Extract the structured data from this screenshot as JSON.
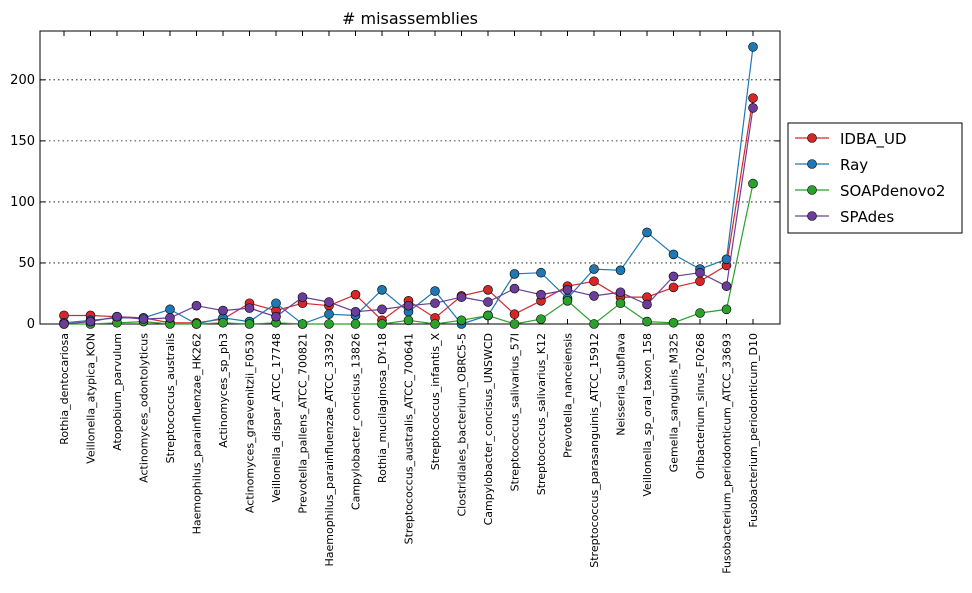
{
  "chart_data": {
    "type": "line",
    "title": "# misassemblies",
    "xlabel": "",
    "ylabel": "",
    "ylim": [
      0,
      240
    ],
    "yticks": [
      0,
      50,
      100,
      150,
      200
    ],
    "grid": "y",
    "legend_position": "right",
    "categories": [
      "Rothia_dentocariosa",
      "Veillonella_atypica_KON",
      "Atopobium_parvulum",
      "Actinomyces_odontolyticus",
      "Streptococcus_australis",
      "Haemophilus_parainfluenzae_HK262",
      "Actinomyces_sp_ph3",
      "Actinomyces_graevenitzii_F0530",
      "Veillonella_dispar_ATCC_17748",
      "Prevotella_pallens_ATCC_700821",
      "Haemophilus_parainfluenzae_ATCC_33392",
      "Campylobacter_concisus_13826",
      "Rothia_mucilaginosa_DY-18",
      "Streptococcus_australis_ATCC_700641",
      "Streptococcus_infantis_X",
      "Clostridiales_bacterium_OBRC5-5",
      "Campylobacter_concisus_UNSWCD",
      "Streptococcus_salivarius_57I",
      "Streptococcus_salivarius_K12",
      "Prevotella_nanceiensis",
      "Streptococcus_parasanguinis_ATCC_15912",
      "Neisseria_subflava",
      "Veillonella_sp_oral_taxon_158",
      "Gemella_sanguinis_M325",
      "Oribacterium_sinus_F0268",
      "Fusobacterium_periodonticum_ATCC_33693",
      "Fusobacterium_periodonticum_D10"
    ],
    "series": [
      {
        "name": "IDBA_UD",
        "color": "#d62728",
        "values": [
          7,
          7,
          6,
          5,
          1,
          1,
          4,
          17,
          11,
          17,
          15,
          24,
          3,
          19,
          5,
          23,
          28,
          8,
          19,
          31,
          35,
          22,
          22,
          30,
          35,
          48,
          185
        ]
      },
      {
        "name": "Ray",
        "color": "#1f77b4",
        "values": [
          1,
          3,
          5,
          5,
          12,
          0,
          5,
          2,
          17,
          0,
          8,
          7,
          28,
          10,
          27,
          0,
          7,
          41,
          42,
          21,
          45,
          44,
          75,
          57,
          45,
          53,
          227
        ]
      },
      {
        "name": "SOAPdenovo2",
        "color": "#2ca02c",
        "values": [
          0,
          0,
          1,
          2,
          0,
          0,
          1,
          0,
          1,
          0,
          0,
          0,
          0,
          3,
          0,
          3,
          7,
          0,
          4,
          19,
          0,
          17,
          2,
          1,
          9,
          12,
          115
        ]
      },
      {
        "name": "SPAdes",
        "color": "#6a3d9a",
        "values": [
          0,
          2,
          6,
          4,
          5,
          15,
          11,
          13,
          6,
          22,
          18,
          10,
          12,
          15,
          17,
          22,
          18,
          29,
          24,
          28,
          23,
          26,
          16,
          39,
          42,
          31,
          177
        ]
      }
    ]
  }
}
